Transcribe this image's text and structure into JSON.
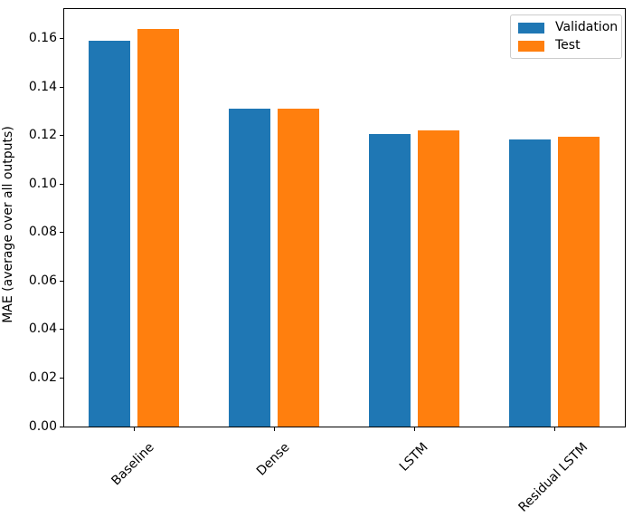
{
  "chart_data": {
    "type": "bar",
    "title": "",
    "xlabel": "",
    "ylabel": "MAE (average over all outputs)",
    "categories": [
      "Baseline",
      "Dense",
      "LSTM",
      "Residual LSTM"
    ],
    "series": [
      {
        "name": "Validation",
        "color": "#1f77b4",
        "values": [
          0.159,
          0.131,
          0.1205,
          0.1185
        ]
      },
      {
        "name": "Test",
        "color": "#ff7f0e",
        "values": [
          0.164,
          0.131,
          0.122,
          0.1195
        ]
      }
    ],
    "ylim": [
      0,
      0.1722
    ],
    "ytick_values": [
      0.0,
      0.02,
      0.04,
      0.06,
      0.08,
      0.1,
      0.12,
      0.14,
      0.16
    ],
    "ytick_labels": [
      "0.00",
      "0.02",
      "0.04",
      "0.06",
      "0.08",
      "0.10",
      "0.12",
      "0.14",
      "0.16"
    ],
    "xtick_rotation_deg": 45,
    "grid": false,
    "legend_position": "upper right",
    "background_color": "#ffffff",
    "axis_color": "#000000"
  }
}
